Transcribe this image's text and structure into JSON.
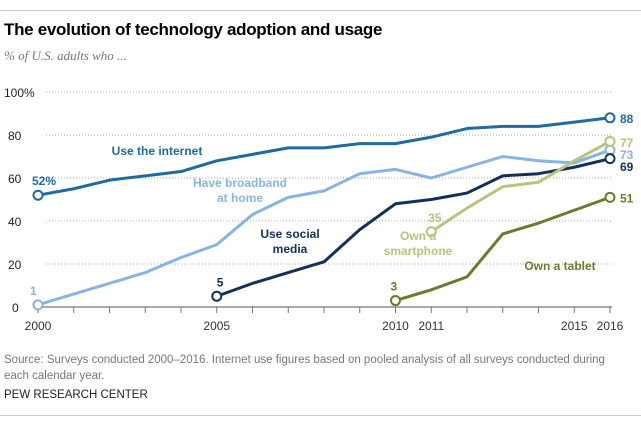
{
  "title": "The evolution of technology adoption and usage",
  "subtitle": "% of U.S. adults who ...",
  "note": "Source: Surveys conducted 2000–2016. Internet use figures based on pooled analysis of all surveys conducted during each calendar year.",
  "credit": "PEW RESEARCH CENTER",
  "chart_data": {
    "type": "line",
    "title": "The evolution of technology adoption and usage",
    "ylabel": "% of U.S. adults who ...",
    "ylim": [
      0,
      100
    ],
    "yticks": [
      "0",
      "20",
      "40",
      "60",
      "80",
      "100%"
    ],
    "ytick_values": [
      0,
      20,
      40,
      60,
      80,
      100
    ],
    "xlim": [
      2000,
      2016
    ],
    "xtick_labels": [
      "2000",
      "2005",
      "2010",
      "2011",
      "2015",
      "2016"
    ],
    "xtick_values": [
      2000,
      2005,
      2010,
      2011,
      2015,
      2016
    ],
    "grid": true,
    "series": [
      {
        "name": "Use the internet",
        "color": "#1f6aa0",
        "x": [
          2000,
          2001,
          2002,
          2003,
          2004,
          2005,
          2006,
          2007,
          2008,
          2009,
          2010,
          2011,
          2012,
          2013,
          2014,
          2015,
          2016
        ],
        "values": [
          52,
          55,
          59,
          61,
          63,
          68,
          71,
          74,
          74,
          76,
          76,
          79,
          83,
          84,
          84,
          86,
          88
        ],
        "start_label": "52%",
        "end_label": "88"
      },
      {
        "name": "Have broadband at home",
        "color": "#86b4e3",
        "x": [
          2000,
          2001,
          2002,
          2003,
          2004,
          2005,
          2006,
          2007,
          2008,
          2009,
          2010,
          2011,
          2012,
          2013,
          2014,
          2015,
          2016
        ],
        "values": [
          1,
          6,
          11,
          16,
          23,
          29,
          43,
          51,
          54,
          62,
          64,
          60,
          65,
          70,
          68,
          67,
          73
        ],
        "start_label": "1",
        "end_label": "73"
      },
      {
        "name": "Use social media",
        "color": "#13305a",
        "x": [
          2005,
          2006,
          2007,
          2008,
          2009,
          2010,
          2011,
          2012,
          2013,
          2014,
          2015,
          2016
        ],
        "values": [
          5,
          11,
          16,
          21,
          36,
          48,
          50,
          53,
          61,
          62,
          65,
          69
        ],
        "start_label": "5",
        "end_label": "69"
      },
      {
        "name": "Own a smartphone",
        "color": "#b5c67c",
        "x": [
          2011,
          2012,
          2013,
          2014,
          2015,
          2016
        ],
        "values": [
          35,
          46,
          56,
          58,
          68,
          77
        ],
        "start_label": "35",
        "end_label": "77"
      },
      {
        "name": "Own a tablet",
        "color": "#6b7a2c",
        "x": [
          2010,
          2011,
          2012,
          2013,
          2014,
          2015,
          2016
        ],
        "values": [
          3,
          8,
          14,
          34,
          39,
          45,
          51
        ],
        "start_label": "3",
        "end_label": "51"
      }
    ],
    "series_label_lines": [
      [
        "Use the internet"
      ],
      [
        "Have broadband",
        "at home"
      ],
      [
        "Use social",
        "media"
      ],
      [
        "Own a",
        "smartphone"
      ],
      [
        "Own a tablet"
      ]
    ]
  }
}
